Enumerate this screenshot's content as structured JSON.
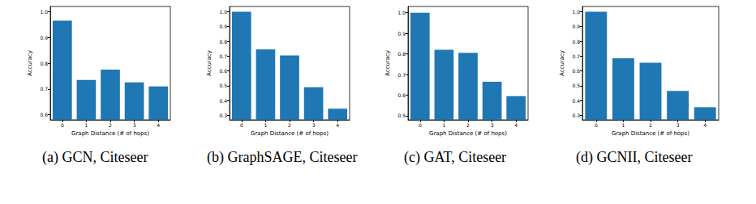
{
  "chart_data": [
    {
      "type": "bar",
      "title": "(a) GCN, Citeseer",
      "x_label": "Graph Distance (# of hops)",
      "y_label": "Accuracy",
      "categories": [
        "0",
        "1",
        "2",
        "3",
        "4"
      ],
      "values": [
        0.965,
        0.735,
        0.775,
        0.725,
        0.71
      ],
      "color": "#1f77b4",
      "ylim": [
        0.58,
        1.02
      ],
      "yticks": [
        0.6,
        0.7,
        0.8,
        0.9,
        {
          "value": 1,
          "label": "1.0"
        }
      ]
    },
    {
      "type": "bar",
      "title": "(b) GraphSAGE, Citeseer",
      "x_label": "Graph Distance (# of hops)",
      "y_label": "Accuracy",
      "categories": [
        "0",
        "1",
        "2",
        "3",
        "4"
      ],
      "values": [
        1.0,
        0.745,
        0.705,
        0.49,
        0.345
      ],
      "color": "#1f77b4",
      "ylim": [
        0.27,
        1.035
      ],
      "yticks": [
        0.3,
        0.4,
        0.5,
        0.6,
        0.7,
        0.8,
        0.9,
        {
          "value": 1,
          "label": "1.0"
        }
      ]
    },
    {
      "type": "bar",
      "title": "(c) GAT, Citeseer",
      "x_label": "Graph Distance (# of hops)",
      "y_label": "Accuracy",
      "categories": [
        "0",
        "1",
        "2",
        "3",
        "4"
      ],
      "values": [
        1.0,
        0.82,
        0.805,
        0.665,
        0.595
      ],
      "color": "#1f77b4",
      "ylim": [
        0.48,
        1.03
      ],
      "yticks": [
        0.5,
        0.6,
        0.7,
        0.8,
        0.9,
        {
          "value": 1,
          "label": "1.0"
        }
      ]
    },
    {
      "type": "bar",
      "title": "(d) GCNII, Citeseer",
      "x_label": "Graph Distance (# of hops)",
      "y_label": "Accuracy",
      "categories": [
        "0",
        "1",
        "2",
        "3",
        "4"
      ],
      "values": [
        1.0,
        0.685,
        0.655,
        0.465,
        0.355
      ],
      "color": "#1f77b4",
      "ylim": [
        0.27,
        1.035
      ],
      "yticks": [
        0.3,
        0.4,
        0.5,
        0.6,
        0.7,
        0.8,
        0.9,
        {
          "value": 1,
          "label": "1.0"
        }
      ]
    }
  ]
}
